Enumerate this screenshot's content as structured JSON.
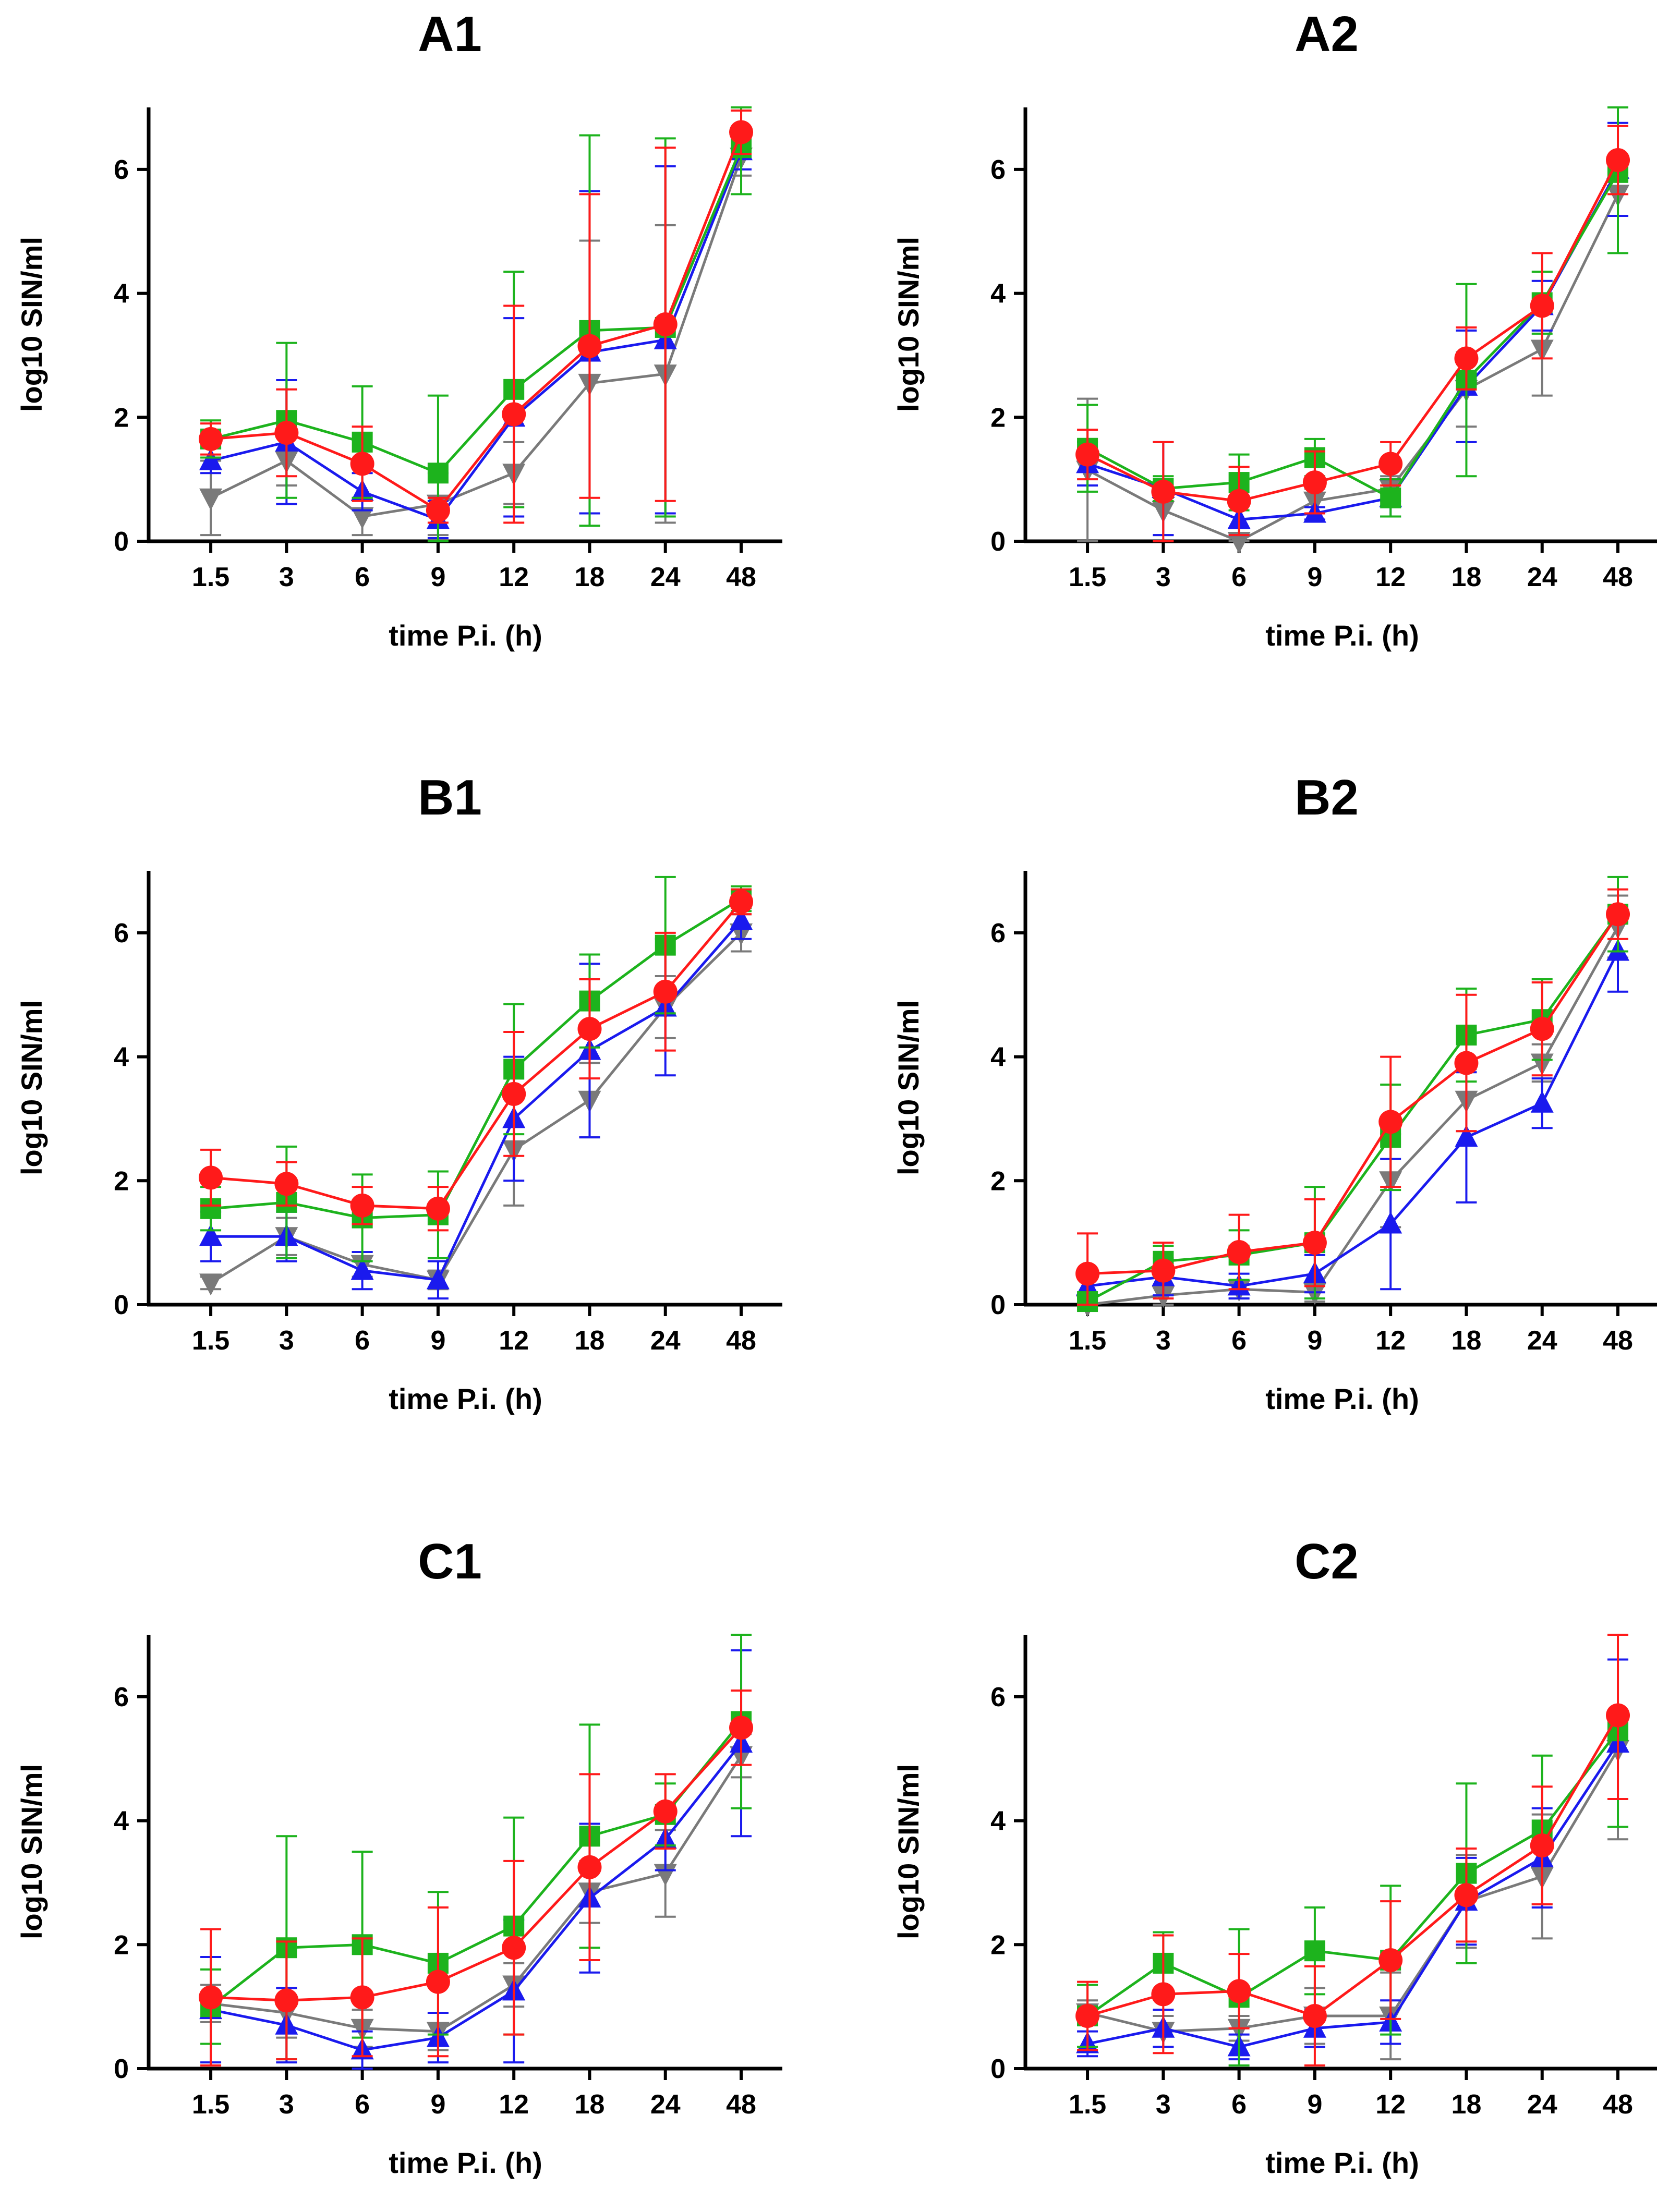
{
  "series_colors": {
    "green": "#1db31d",
    "red": "#ff1a1a",
    "blue": "#1a1aee",
    "gray": "#7a7a7a"
  },
  "series_markers": {
    "green": "square",
    "red": "circle",
    "blue": "triangle-up",
    "gray": "triangle-down"
  },
  "chart_data": [
    {
      "type": "line",
      "title": "A1",
      "xlabel": "time P.i. (h)",
      "ylabel": "log10 SIN/ml",
      "categories": [
        "1.5",
        "3",
        "6",
        "9",
        "12",
        "18",
        "24",
        "48"
      ],
      "ylim": [
        0,
        7
      ],
      "yticks": [
        "0",
        "2",
        "4",
        "6"
      ],
      "series": [
        {
          "name": "gray",
          "values": [
            0.7,
            1.3,
            0.4,
            0.6,
            1.1,
            2.55,
            2.7,
            6.2
          ],
          "errors": [
            0.6,
            0.4,
            0.3,
            0.5,
            0.5,
            2.3,
            2.4,
            0.3
          ]
        },
        {
          "name": "blue",
          "values": [
            1.3,
            1.6,
            0.8,
            0.35,
            2.0,
            3.05,
            3.25,
            6.3
          ],
          "errors": [
            0.2,
            1.0,
            0.3,
            0.3,
            1.6,
            2.6,
            2.8,
            0.3
          ]
        },
        {
          "name": "green",
          "values": [
            1.65,
            1.95,
            1.6,
            1.1,
            2.45,
            3.4,
            3.45,
            6.35
          ],
          "errors": [
            0.3,
            1.25,
            0.9,
            1.25,
            1.9,
            3.15,
            3.05,
            0.75
          ]
        },
        {
          "name": "red",
          "values": [
            1.65,
            1.75,
            1.25,
            0.5,
            2.05,
            3.15,
            3.5,
            6.6
          ],
          "errors": [
            0.25,
            0.7,
            0.6,
            0.2,
            1.75,
            2.45,
            2.85,
            0.35
          ]
        }
      ]
    },
    {
      "type": "line",
      "title": "A2",
      "xlabel": "time P.i. (h)",
      "ylabel": "log10 SIN/ml",
      "categories": [
        "1.5",
        "3",
        "6",
        "9",
        "12",
        "18",
        "24",
        "48"
      ],
      "ylim": [
        0,
        7
      ],
      "yticks": [
        "0",
        "2",
        "4",
        "6"
      ],
      "series": [
        {
          "name": "gray",
          "values": [
            1.15,
            0.5,
            0.0,
            0.65,
            0.85,
            2.45,
            3.1,
            5.6
          ],
          "errors": [
            1.15,
            0.4,
            0.1,
            0.2,
            0.2,
            0.6,
            0.75,
            0.35
          ]
        },
        {
          "name": "blue",
          "values": [
            1.25,
            0.85,
            0.35,
            0.45,
            0.7,
            2.5,
            3.8,
            6.0
          ],
          "errors": [
            0.35,
            0.75,
            0.25,
            0.1,
            0.3,
            0.9,
            0.4,
            0.75
          ]
        },
        {
          "name": "green",
          "values": [
            1.5,
            0.85,
            0.95,
            1.35,
            0.7,
            2.6,
            3.85,
            5.95
          ],
          "errors": [
            0.7,
            0.2,
            0.45,
            0.3,
            0.3,
            1.55,
            0.5,
            1.3
          ]
        },
        {
          "name": "red",
          "values": [
            1.4,
            0.8,
            0.65,
            0.95,
            1.25,
            2.95,
            3.8,
            6.15
          ],
          "errors": [
            0.4,
            0.8,
            0.55,
            0.5,
            0.35,
            0.5,
            0.85,
            0.55
          ]
        }
      ]
    },
    {
      "type": "line",
      "title": "B1",
      "xlabel": "time P.i. (h)",
      "ylabel": "log10 SIN/ml",
      "categories": [
        "1.5",
        "3",
        "6",
        "9",
        "12",
        "18",
        "24",
        "48"
      ],
      "ylim": [
        0,
        7
      ],
      "yticks": [
        "0",
        "2",
        "4",
        "6"
      ],
      "series": [
        {
          "name": "gray",
          "values": [
            0.35,
            1.1,
            0.65,
            0.4,
            2.5,
            3.3,
            4.8,
            6.0
          ],
          "errors": [
            0.1,
            0.3,
            0.2,
            0.15,
            0.9,
            0.6,
            0.5,
            0.3
          ]
        },
        {
          "name": "blue",
          "values": [
            1.1,
            1.1,
            0.55,
            0.4,
            3.0,
            4.1,
            4.8,
            6.2
          ],
          "errors": [
            0.4,
            0.4,
            0.3,
            0.3,
            1.0,
            1.4,
            1.1,
            0.3
          ]
        },
        {
          "name": "green",
          "values": [
            1.55,
            1.65,
            1.4,
            1.45,
            3.8,
            4.9,
            5.8,
            6.55
          ],
          "errors": [
            0.35,
            0.9,
            0.7,
            0.7,
            1.05,
            0.75,
            1.1,
            0.2
          ]
        },
        {
          "name": "red",
          "values": [
            2.05,
            1.95,
            1.6,
            1.55,
            3.4,
            4.45,
            5.05,
            6.5
          ],
          "errors": [
            0.45,
            0.35,
            0.3,
            0.35,
            1.0,
            0.8,
            0.95,
            0.2
          ]
        }
      ]
    },
    {
      "type": "line",
      "title": "B2",
      "xlabel": "time P.i. (h)",
      "ylabel": "log10 SIN/ml",
      "categories": [
        "1.5",
        "3",
        "6",
        "9",
        "12",
        "18",
        "24",
        "48"
      ],
      "ylim": [
        0,
        7
      ],
      "yticks": [
        "0",
        "2",
        "4",
        "6"
      ],
      "series": [
        {
          "name": "gray",
          "values": [
            0.0,
            0.15,
            0.25,
            0.2,
            2.0,
            3.3,
            3.9,
            6.1
          ],
          "errors": [
            0.1,
            0.15,
            0.15,
            0.15,
            0.75,
            0.5,
            0.3,
            0.5
          ]
        },
        {
          "name": "blue",
          "values": [
            0.3,
            0.45,
            0.3,
            0.5,
            1.3,
            2.7,
            3.25,
            5.7
          ],
          "errors": [
            0.2,
            0.3,
            0.2,
            0.3,
            1.05,
            1.05,
            0.4,
            0.65
          ]
        },
        {
          "name": "green",
          "values": [
            0.05,
            0.7,
            0.8,
            1.0,
            2.7,
            4.35,
            4.6,
            6.3
          ],
          "errors": [
            0.1,
            0.25,
            0.4,
            0.9,
            0.85,
            0.75,
            0.65,
            0.6
          ]
        },
        {
          "name": "red",
          "values": [
            0.5,
            0.55,
            0.85,
            1.0,
            2.95,
            3.9,
            4.45,
            6.3
          ],
          "errors": [
            0.65,
            0.45,
            0.6,
            0.7,
            1.05,
            1.1,
            0.75,
            0.4
          ]
        }
      ]
    },
    {
      "type": "line",
      "title": "C1",
      "xlabel": "time P.i. (h)",
      "ylabel": "log10 SIN/ml",
      "categories": [
        "1.5",
        "3",
        "6",
        "9",
        "12",
        "18",
        "24",
        "48"
      ],
      "ylim": [
        0,
        7
      ],
      "yticks": [
        "0",
        "2",
        "4",
        "6"
      ],
      "series": [
        {
          "name": "gray",
          "values": [
            1.05,
            0.9,
            0.65,
            0.6,
            1.35,
            2.85,
            3.15,
            5.05
          ],
          "errors": [
            0.3,
            0.4,
            0.3,
            0.3,
            0.35,
            0.5,
            0.7,
            0.35
          ]
        },
        {
          "name": "blue",
          "values": [
            0.95,
            0.7,
            0.3,
            0.5,
            1.25,
            2.75,
            3.7,
            5.25
          ],
          "errors": [
            0.85,
            0.6,
            0.3,
            0.4,
            1.15,
            1.2,
            0.5,
            1.5
          ]
        },
        {
          "name": "green",
          "values": [
            1.0,
            1.95,
            2.0,
            1.7,
            2.3,
            3.75,
            4.1,
            5.6
          ],
          "errors": [
            0.6,
            1.8,
            1.5,
            1.15,
            1.75,
            1.8,
            0.5,
            1.4
          ]
        },
        {
          "name": "red",
          "values": [
            1.15,
            1.1,
            1.15,
            1.4,
            1.95,
            3.25,
            4.15,
            5.5
          ],
          "errors": [
            1.1,
            0.95,
            0.95,
            1.2,
            1.4,
            1.5,
            0.6,
            0.6
          ]
        }
      ]
    },
    {
      "type": "line",
      "title": "C2",
      "xlabel": "time P.i. (h)",
      "ylabel": "log10 SIN/ml",
      "categories": [
        "1.5",
        "3",
        "6",
        "9",
        "12",
        "18",
        "24",
        "48"
      ],
      "ylim": [
        0,
        7
      ],
      "yticks": [
        "0",
        "2",
        "4",
        "6"
      ],
      "series": [
        {
          "name": "gray",
          "values": [
            0.9,
            0.6,
            0.65,
            0.85,
            0.85,
            2.7,
            3.1,
            5.15
          ],
          "errors": [
            0.2,
            0.25,
            0.2,
            0.45,
            0.7,
            0.75,
            1.0,
            1.45
          ]
        },
        {
          "name": "blue",
          "values": [
            0.4,
            0.65,
            0.35,
            0.65,
            0.75,
            2.7,
            3.4,
            5.25
          ],
          "errors": [
            0.2,
            0.3,
            0.2,
            0.3,
            0.35,
            0.7,
            0.8,
            1.35
          ]
        },
        {
          "name": "green",
          "values": [
            0.85,
            1.7,
            1.15,
            1.9,
            1.75,
            3.15,
            3.85,
            5.45
          ],
          "errors": [
            0.5,
            0.5,
            1.1,
            0.7,
            1.2,
            1.45,
            1.2,
            1.55
          ]
        },
        {
          "name": "red",
          "values": [
            0.85,
            1.2,
            1.25,
            0.85,
            1.75,
            2.8,
            3.6,
            5.7
          ],
          "errors": [
            0.55,
            0.95,
            0.6,
            0.8,
            0.95,
            0.75,
            0.95,
            1.35
          ]
        }
      ]
    }
  ]
}
